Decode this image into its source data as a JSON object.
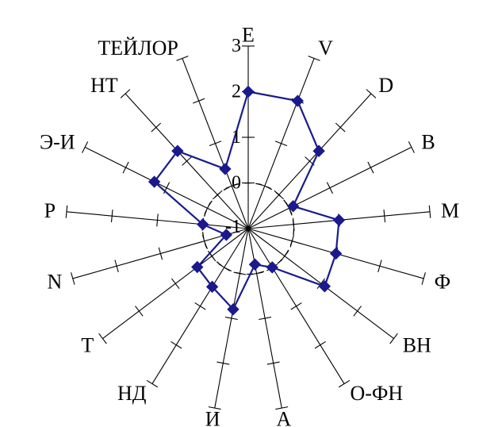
{
  "chart_data": {
    "type": "radar",
    "axes": [
      "E",
      "V",
      "D",
      "B",
      "M",
      "Ф",
      "ВН",
      "О-ФН",
      "А",
      "И",
      "НД",
      "Т",
      "N",
      "Р",
      "Э-И",
      "НТ",
      "ТЕЙЛОР"
    ],
    "series": [
      {
        "values": [
          2.0,
          2.0,
          1.3,
          0.1,
          1.0,
          1.0,
          1.1,
          0.0,
          -0.2,
          0.8,
          0.5,
          0.4,
          -0.5,
          0.0,
          1.3,
          1.3,
          0.4
        ]
      }
    ],
    "range": [
      -1,
      3
    ],
    "ticks": [
      "-1",
      "0",
      "1",
      "2",
      "3"
    ],
    "reference_circle_value": 0,
    "colors": {
      "series": "#1a1a8c",
      "axes": "#000000",
      "reference": "#000000"
    }
  }
}
